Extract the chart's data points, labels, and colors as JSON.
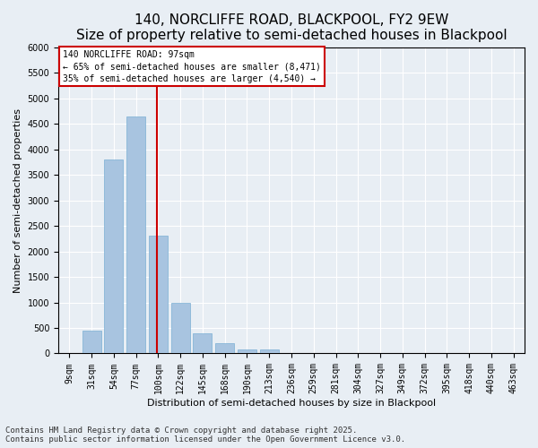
{
  "title": "140, NORCLIFFE ROAD, BLACKPOOL, FY2 9EW",
  "subtitle": "Size of property relative to semi-detached houses in Blackpool",
  "xlabel": "Distribution of semi-detached houses by size in Blackpool",
  "ylabel": "Number of semi-detached properties",
  "categories": [
    "9sqm",
    "31sqm",
    "54sqm",
    "77sqm",
    "100sqm",
    "122sqm",
    "145sqm",
    "168sqm",
    "190sqm",
    "213sqm",
    "236sqm",
    "259sqm",
    "281sqm",
    "304sqm",
    "327sqm",
    "349sqm",
    "372sqm",
    "395sqm",
    "418sqm",
    "440sqm",
    "463sqm"
  ],
  "values": [
    10,
    450,
    3800,
    4650,
    2300,
    1000,
    400,
    200,
    80,
    80,
    10,
    5,
    5,
    2,
    2,
    2,
    1,
    1,
    0,
    0,
    0
  ],
  "bar_color": "#a8c4e0",
  "bar_edgecolor": "#7aafd4",
  "vline_x_index": 4,
  "vline_color": "#cc0000",
  "annotation_text": "140 NORCLIFFE ROAD: 97sqm\n← 65% of semi-detached houses are smaller (8,471)\n35% of semi-detached houses are larger (4,540) →",
  "annotation_box_edgecolor": "#cc0000",
  "ylim": [
    0,
    6000
  ],
  "yticks": [
    0,
    500,
    1000,
    1500,
    2000,
    2500,
    3000,
    3500,
    4000,
    4500,
    5000,
    5500,
    6000
  ],
  "footnote": "Contains HM Land Registry data © Crown copyright and database right 2025.\nContains public sector information licensed under the Open Government Licence v3.0.",
  "bg_color": "#e8eef4",
  "plot_bg_color": "#e8eef4",
  "title_fontsize": 11,
  "tick_fontsize": 7,
  "label_fontsize": 8,
  "footnote_fontsize": 6.5
}
